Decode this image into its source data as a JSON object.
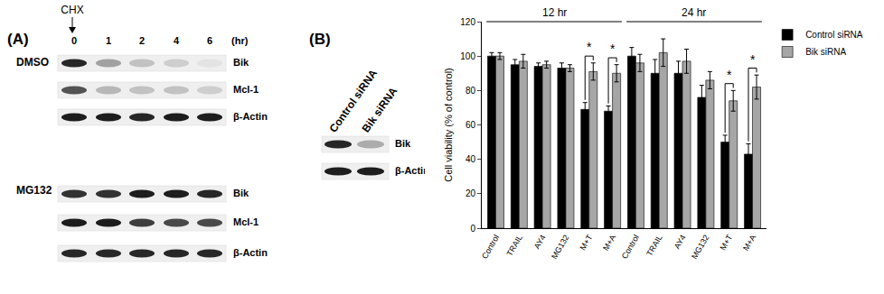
{
  "chart_data": {
    "type": "bar",
    "y_label": "Cell viability (% of control)",
    "categories": [
      "Control",
      "TRAIL",
      "AY4",
      "MG132",
      "M+T",
      "M+A",
      "Control",
      "TRAIL",
      "AY4",
      "MG132",
      "M+T",
      "M+A"
    ],
    "groups": [
      {
        "label": "12 hr",
        "start": 0,
        "end": 5
      },
      {
        "label": "24 hr",
        "start": 6,
        "end": 11
      }
    ],
    "series": [
      {
        "name": "Control siRNA",
        "color": "#000000",
        "values": [
          100,
          95,
          94,
          93,
          69,
          68,
          100,
          90,
          90,
          76,
          50,
          43
        ],
        "errors": [
          2,
          3,
          2,
          3,
          4,
          3,
          5,
          8,
          7,
          7,
          4,
          6
        ]
      },
      {
        "name": "Bik siRNA",
        "color": "#a6a6a6",
        "values": [
          100,
          97,
          95,
          93,
          91,
          90,
          96,
          102,
          97,
          86,
          74,
          82
        ],
        "errors": [
          2,
          4,
          2,
          2,
          5,
          5,
          5,
          8,
          7,
          5,
          6,
          7
        ]
      }
    ],
    "significance": [
      {
        "index": 4,
        "text": "*"
      },
      {
        "index": 5,
        "text": "*"
      },
      {
        "index": 10,
        "text": "*"
      },
      {
        "index": 11,
        "text": "*"
      }
    ],
    "ylim": [
      0,
      120
    ],
    "yticks": [
      0,
      20,
      40,
      60,
      80,
      100,
      120
    ],
    "grid": false,
    "legend": "top right"
  },
  "blots": {
    "panel_a": {
      "label": "(A)",
      "treatment": "CHX",
      "timepoints": [
        0,
        1,
        2,
        4,
        6
      ],
      "time_unit": "(hr)",
      "groups": [
        {
          "name": "DMSO",
          "rows": [
            {
              "protein": "Bik",
              "intensity": [
                0.9,
                0.35,
                0.2,
                0.15,
                0.05
              ]
            },
            {
              "protein": "Mcl-1",
              "intensity": [
                0.7,
                0.25,
                0.2,
                0.2,
                0.15
              ]
            },
            {
              "protein": "β-Actin",
              "intensity": [
                0.95,
                0.95,
                0.9,
                0.95,
                0.95
              ]
            }
          ]
        },
        {
          "name": "MG132",
          "rows": [
            {
              "protein": "Bik",
              "intensity": [
                0.85,
                0.85,
                0.95,
                0.95,
                0.9
              ]
            },
            {
              "protein": "Mcl-1",
              "intensity": [
                0.95,
                0.95,
                0.8,
                0.75,
                0.75
              ]
            },
            {
              "protein": "β-Actin",
              "intensity": [
                0.9,
                0.9,
                0.9,
                0.9,
                0.9
              ]
            }
          ]
        }
      ]
    },
    "panel_b": {
      "label": "(B)",
      "lanes": [
        "Control siRNA",
        "Bik siRNA"
      ],
      "rows": [
        {
          "protein": "Bik",
          "intensity": [
            0.9,
            0.3
          ]
        },
        {
          "protein": "β-Actin",
          "intensity": [
            0.95,
            0.95
          ]
        }
      ]
    }
  }
}
